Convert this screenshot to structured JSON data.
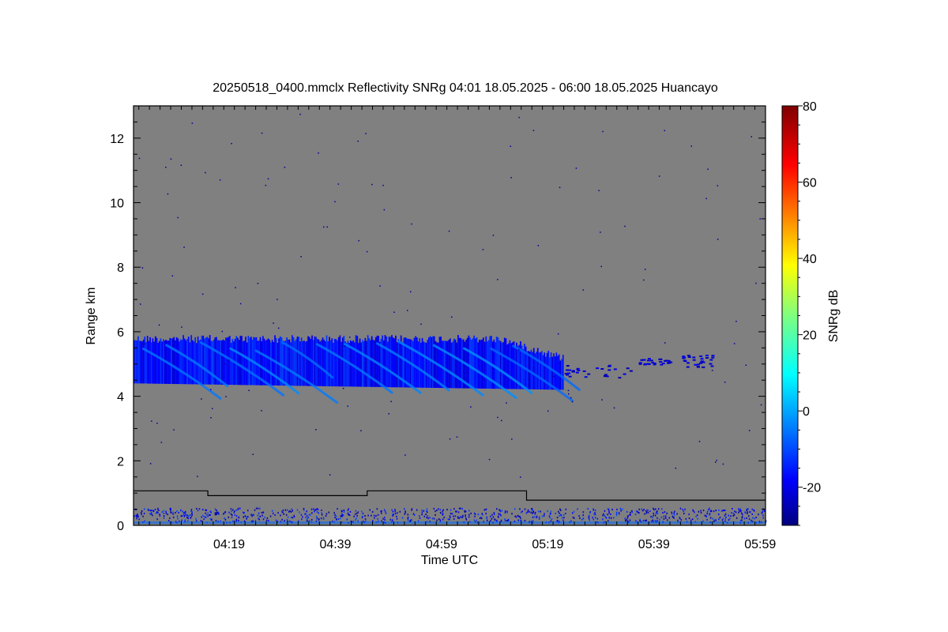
{
  "chart_data": {
    "type": "heatmap",
    "title": "20250518_0400.mmclx Reflectivity SNRg   04:01 18.05.2025 - 06:00 18.05.2025 Huancayo",
    "xlabel": "Time UTC",
    "ylabel": "Range km",
    "colorbar_label": "SNRg dB",
    "x_range_minutes_utc": [
      241,
      360
    ],
    "x_ticks": [
      {
        "minute": 259,
        "label": "04:19"
      },
      {
        "minute": 279,
        "label": "04:39"
      },
      {
        "minute": 299,
        "label": "04:59"
      },
      {
        "minute": 319,
        "label": "05:19"
      },
      {
        "minute": 339,
        "label": "05:39"
      },
      {
        "minute": 359,
        "label": "05:59"
      }
    ],
    "ylim": [
      0,
      13
    ],
    "y_ticks": [
      0,
      2,
      4,
      6,
      8,
      10,
      12
    ],
    "colorbar_range": [
      -30,
      80
    ],
    "colorbar_ticks": [
      -20,
      0,
      20,
      40,
      60,
      80
    ],
    "colormap": "jet",
    "no_data_color": "#808080",
    "echo_layer": {
      "description_visible": "cloud echo band",
      "start_minute": 241,
      "end_minute": 322,
      "top_km": 5.9,
      "base_km_start": 4.4,
      "base_km_end": 4.2,
      "snr_range_db": [
        -25,
        -10
      ]
    },
    "sparse_echoes": [
      {
        "start_minute": 322,
        "end_minute": 336,
        "bottom_km": 4.6,
        "top_km": 5.0
      },
      {
        "start_minute": 336,
        "end_minute": 342,
        "bottom_km": 5.0,
        "top_km": 5.2
      },
      {
        "start_minute": 344,
        "end_minute": 350,
        "bottom_km": 4.9,
        "top_km": 5.3
      }
    ],
    "boundary_line": [
      {
        "minute": 241,
        "range_km": 1.07
      },
      {
        "minute": 255,
        "range_km": 1.07
      },
      {
        "minute": 255,
        "range_km": 0.92
      },
      {
        "minute": 285,
        "range_km": 0.92
      },
      {
        "minute": 285,
        "range_km": 1.07
      },
      {
        "minute": 315,
        "range_km": 1.07
      },
      {
        "minute": 315,
        "range_km": 0.78
      },
      {
        "minute": 360,
        "range_km": 0.78
      }
    ]
  }
}
